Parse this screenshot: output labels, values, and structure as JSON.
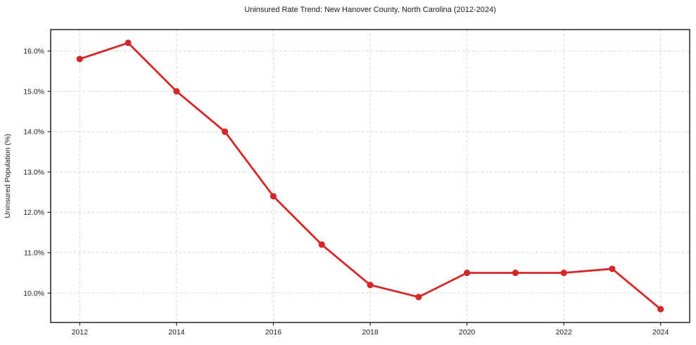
{
  "chart_data": {
    "type": "line",
    "title": "Uninsured Rate Trend: New Hanover County, North Carolina (2012-2024)",
    "xlabel": "",
    "ylabel": "Uninsured Population (%)",
    "x": [
      2012,
      2013,
      2014,
      2015,
      2016,
      2017,
      2018,
      2019,
      2020,
      2021,
      2022,
      2023,
      2024
    ],
    "values": [
      15.8,
      16.2,
      15.0,
      14.0,
      12.4,
      11.2,
      10.2,
      9.9,
      10.5,
      10.5,
      10.5,
      10.6,
      9.6
    ],
    "xlim": [
      2011.4,
      2024.6
    ],
    "ylim": [
      9.27,
      16.53
    ],
    "xticks": [
      2012,
      2014,
      2016,
      2018,
      2020,
      2022,
      2024
    ],
    "xtick_labels": [
      "2012",
      "2014",
      "2016",
      "2018",
      "2020",
      "2022",
      "2024"
    ],
    "yticks": [
      10,
      11,
      12,
      13,
      14,
      15,
      16
    ],
    "ytick_labels": [
      "10.0%",
      "11.0%",
      "12.0%",
      "13.0%",
      "14.0%",
      "15.0%",
      "16.0%"
    ],
    "grid": true,
    "legend_position": "none",
    "colors": {
      "line": "#d62728",
      "marker": "#d62728",
      "grid": "#d8d8d8",
      "axis": "#000000",
      "text": "#1a1a1a",
      "background": "#ffffff"
    }
  }
}
